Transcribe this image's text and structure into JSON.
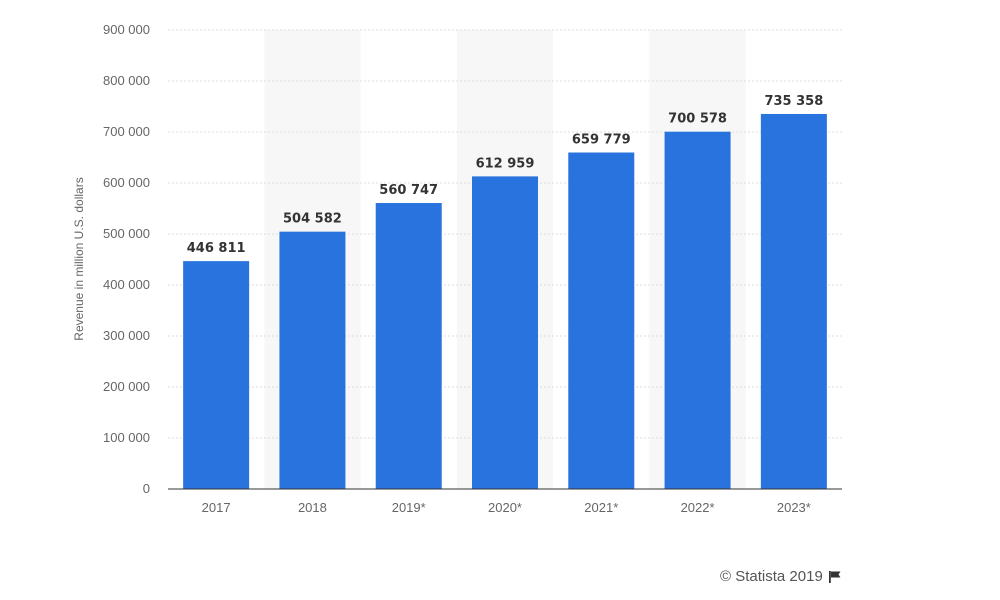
{
  "chart_data": {
    "type": "bar",
    "categories": [
      "2017",
      "2018",
      "2019*",
      "2020*",
      "2021*",
      "2022*",
      "2023*"
    ],
    "series": [
      {
        "values": [
          446811,
          504582,
          560747,
          612959,
          659779,
          700578,
          735358
        ]
      }
    ],
    "data_labels": [
      "446 811",
      "504 582",
      "560 747",
      "612 959",
      "659 779",
      "700 578",
      "735 358"
    ],
    "ylabel": "Revenue in million U.S. dollars",
    "ylim": [
      0,
      900000
    ],
    "y_ticks": [
      0,
      100000,
      200000,
      300000,
      400000,
      500000,
      600000,
      700000,
      800000,
      900000
    ],
    "y_tick_labels": [
      "0",
      "100 000",
      "200 000",
      "300 000",
      "400 000",
      "500 000",
      "600 000",
      "700 000",
      "800 000",
      "900 000"
    ],
    "grid": true,
    "bar_color": "#2873dd",
    "band_color": "#f7f7f7",
    "grid_color": "#dddddd"
  },
  "footer": {
    "credit_text": "© Statista 2019",
    "flag_icon": "flag-icon"
  }
}
